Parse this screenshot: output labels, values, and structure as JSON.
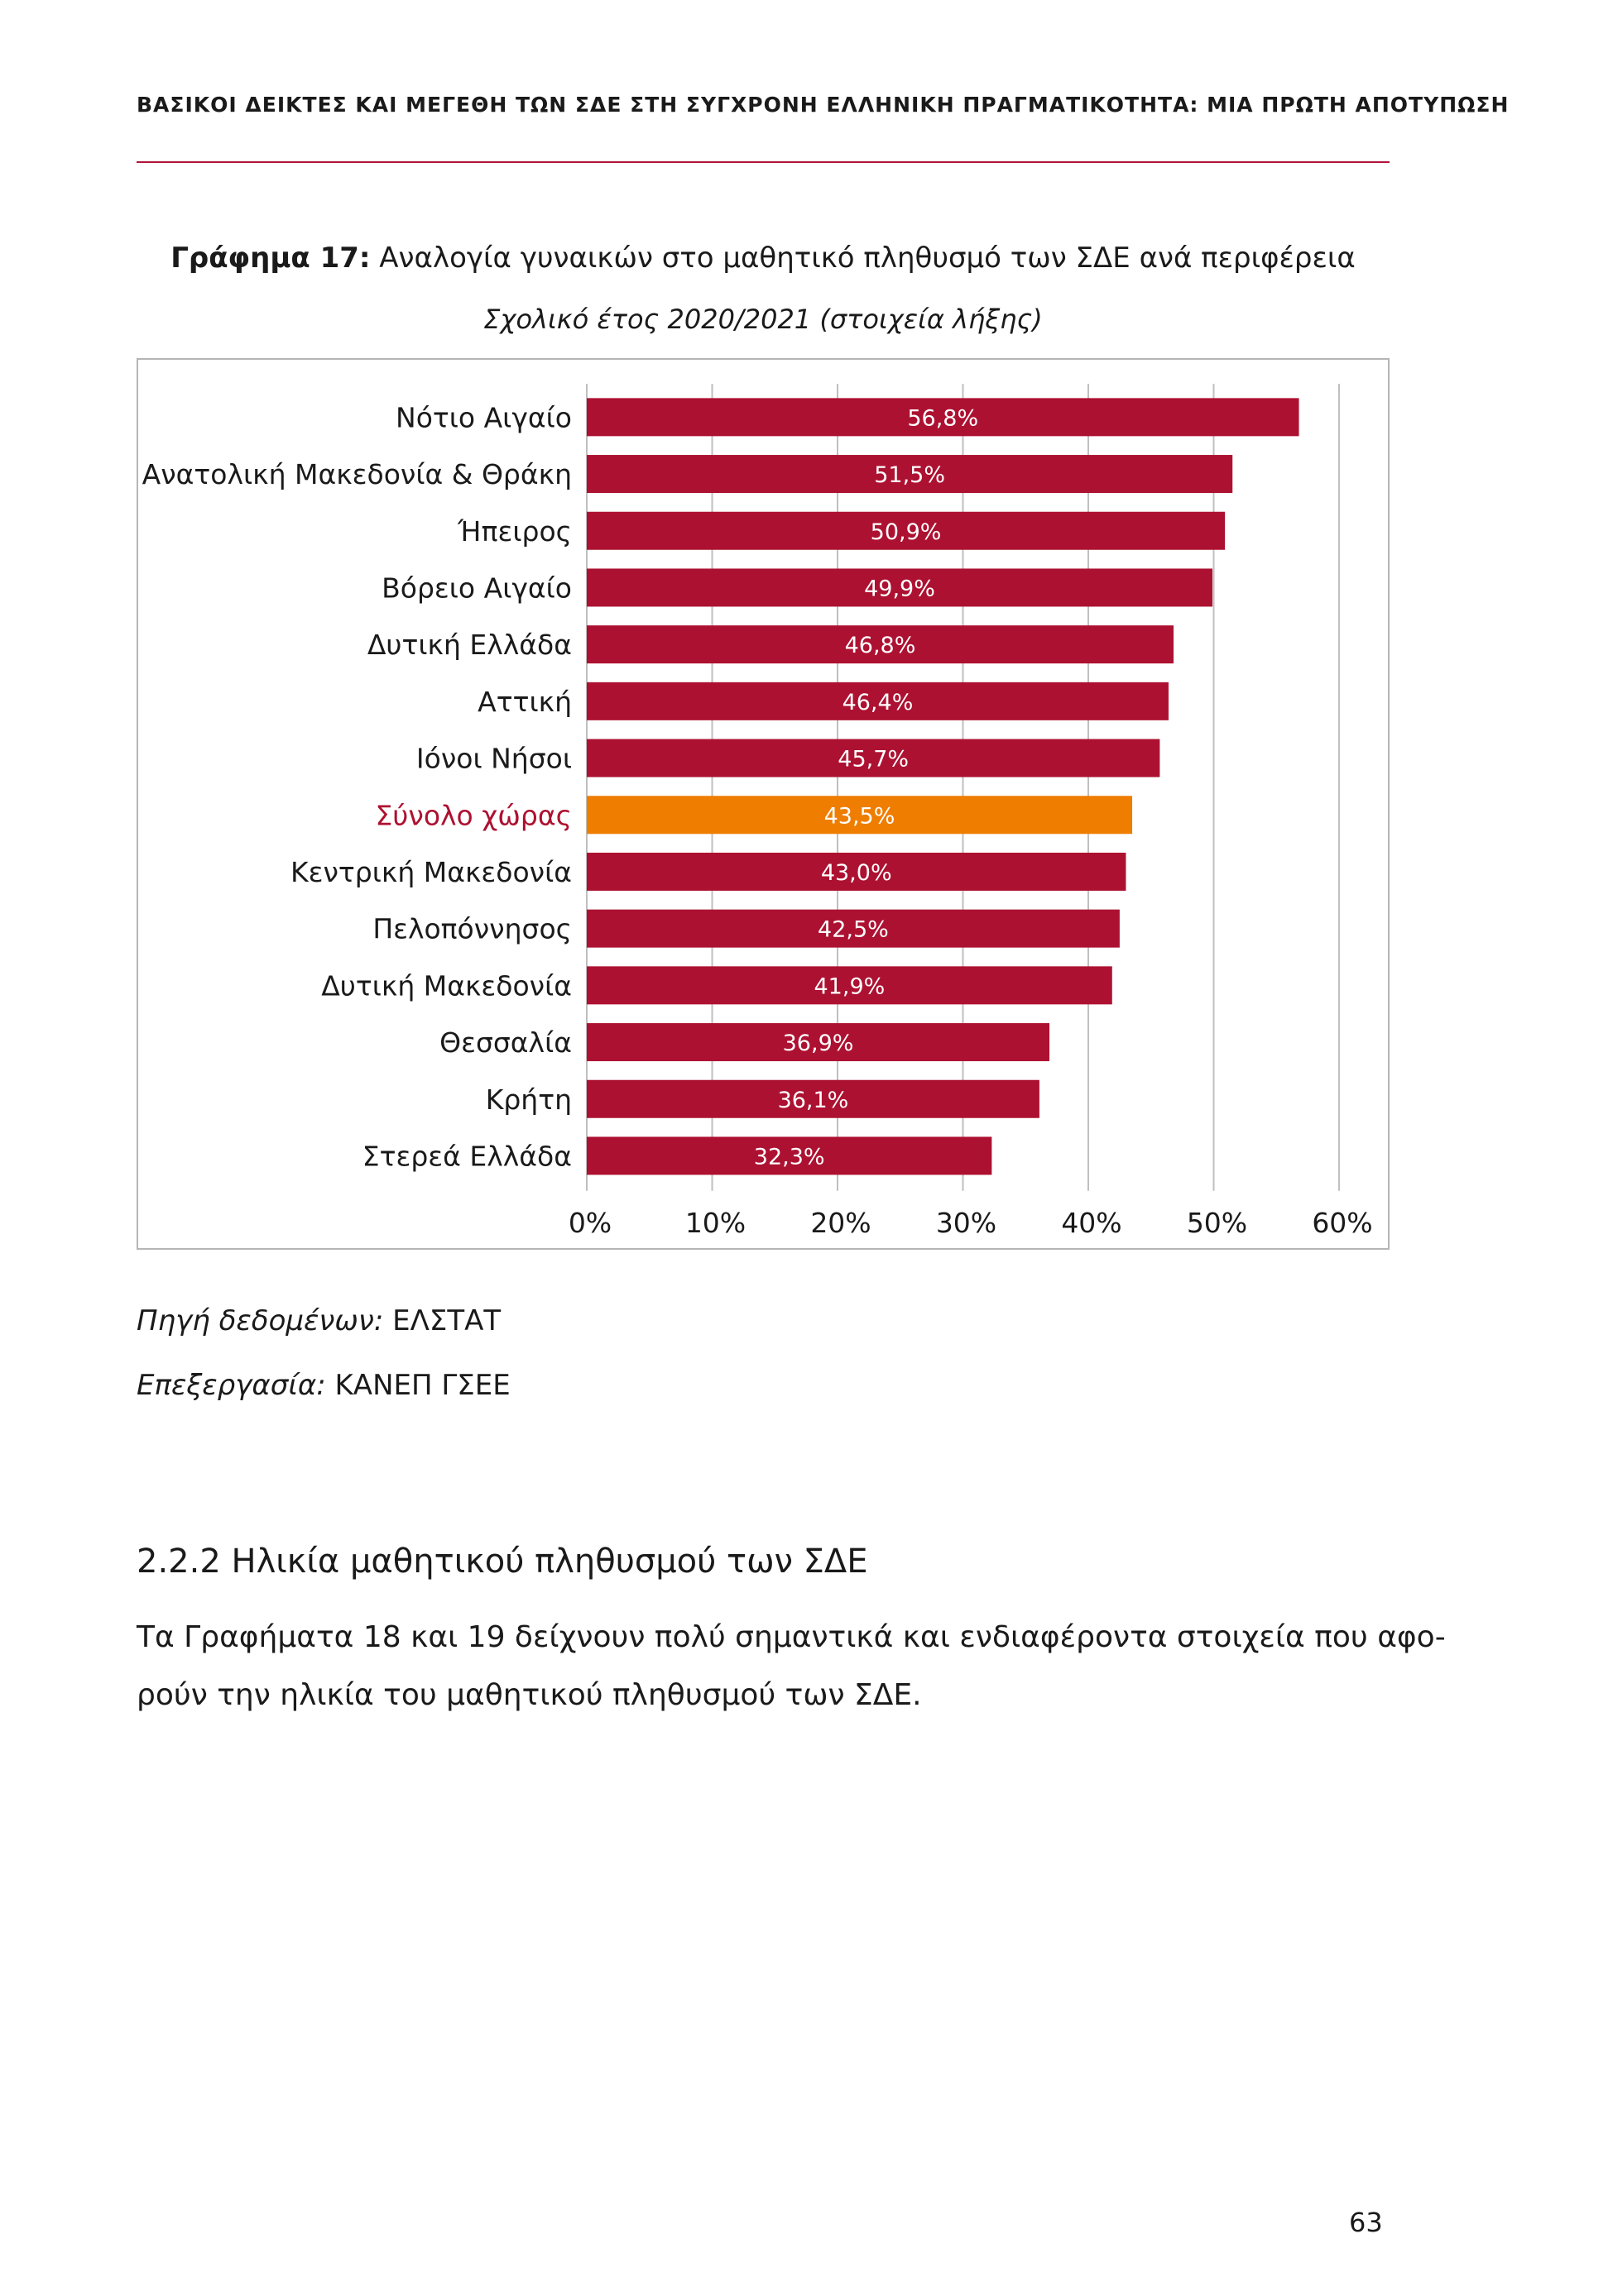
{
  "running_header": "ΒΑΣΙΚΟΙ ΔΕΙΚΤΕΣ ΚΑΙ ΜΕΓΕΘΗ ΤΩΝ ΣΔΕ ΣΤΗ ΣΥΓΧΡΟΝΗ ΕΛΛΗΝΙΚΗ ΠΡΑΓΜΑΤΙΚΟΤΗΤΑ: ΜΙΑ ΠΡΩΤΗ ΑΠΟΤΥΠΩΣΗ",
  "figure": {
    "label": "Γράφημα 17:",
    "title": "Αναλογία γυναικών στο μαθητικό πληθυσμό των ΣΔΕ ανά περιφέρεια",
    "subtitle": "Σχολικό έτος 2020/2021 (στοιχεία λήξης)"
  },
  "chart_data": {
    "type": "bar",
    "orientation": "horizontal",
    "categories": [
      "Νότιο Αιγαίο",
      "Ανατολική Μακεδονία & Θράκη",
      "Ήπειρος",
      "Βόρειο Αιγαίο",
      "Δυτική Ελλάδα",
      "Αττική",
      "Ιόνοι Νήσοι",
      "Σύνολο χώρας",
      "Κεντρική Μακεδονία",
      "Πελοπόννησος",
      "Δυτική Μακεδονία",
      "Θεσσαλία",
      "Κρήτη",
      "Στερεά Ελλάδα"
    ],
    "values": [
      56.8,
      51.5,
      50.9,
      49.9,
      46.8,
      46.4,
      45.7,
      43.5,
      43.0,
      42.5,
      41.9,
      36.9,
      36.1,
      32.3
    ],
    "value_labels": [
      "56,8%",
      "51,5%",
      "50,9%",
      "49,9%",
      "46,8%",
      "46,4%",
      "45,7%",
      "43,5%",
      "43,0%",
      "42,5%",
      "41,9%",
      "36,9%",
      "36,1%",
      "32,3%"
    ],
    "highlight_category": "Σύνολο χώρας",
    "xlim": [
      0,
      60
    ],
    "xticks": [
      0,
      10,
      20,
      30,
      40,
      50,
      60
    ],
    "xtick_labels": [
      "0%",
      "10%",
      "20%",
      "30%",
      "40%",
      "50%",
      "60%"
    ],
    "grid": "vertical",
    "colors": {
      "bar": "#ad1131",
      "highlight_bar": "#ef7d00",
      "highlight_label": "#ad1131",
      "grid": "#bfbfbf",
      "value_label": "#ffffff"
    }
  },
  "source": {
    "label": "Πηγή δεδομένων:",
    "value": "ΕΛΣΤΑΤ"
  },
  "processing": {
    "label": "Επεξεργασία:",
    "value": "ΚΑΝΕΠ ΓΣΕΕ"
  },
  "section": {
    "heading": "2.2.2  Ηλικία μαθητικού πληθυσμού των ΣΔΕ",
    "paragraph_lines": [
      "Τα Γραφήματα 18 και 19 δείχνουν πολύ σημαντικά και ενδιαφέροντα στοιχεία που αφο-",
      "ρούν την ηλικία του μαθητικού πληθυσμού των ΣΔΕ."
    ]
  },
  "page_number": "63"
}
